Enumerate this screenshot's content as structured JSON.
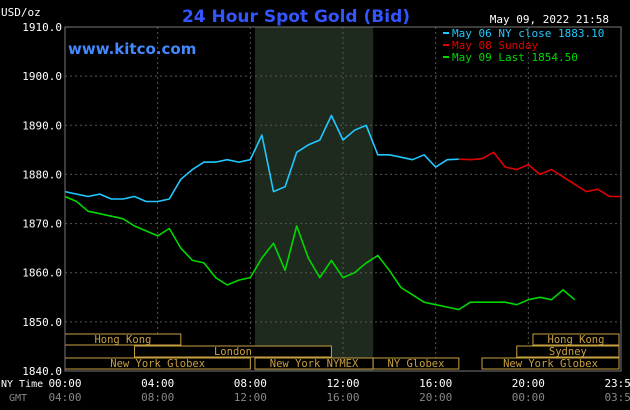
{
  "chart_data": {
    "type": "line",
    "title": "24 Hour Spot Gold (Bid)",
    "ylabel": "USD/oz",
    "timestamp": "May 09, 2022 21:58",
    "watermark": "www.kitco.com",
    "ylim": [
      1840,
      1910
    ],
    "y_ticks": [
      "1840.0",
      "1850.0",
      "1860.0",
      "1870.0",
      "1880.0",
      "1890.0",
      "1900.0",
      "1910.0"
    ],
    "x_row_label_ny": "NY Time",
    "x_row_label_gmt": "GMT",
    "x_ticks_ny": [
      "00:00",
      "04:00",
      "08:00",
      "12:00",
      "16:00",
      "20:00",
      "23:59"
    ],
    "x_ticks_gmt": [
      "04:00",
      "08:00",
      "12:00",
      "16:00",
      "20:00",
      "00:00",
      "03:59"
    ],
    "grid": true,
    "legend_position": "top-right",
    "colors": {
      "background": "#000000",
      "plot": "#000000",
      "nymex_band": "#1e2a1e",
      "grid": "#555555",
      "title": "#3355ff",
      "axis_text": "#ffffff",
      "session_fill": "#000000",
      "session_border": "#c8a040",
      "session_text": "#c8a040"
    },
    "series": [
      {
        "name": "May 06 NY close 1883.10",
        "color": "#20c8ff",
        "x": [
          0,
          0.5,
          1,
          1.5,
          2,
          2.5,
          3,
          3.5,
          4,
          4.5,
          5,
          5.5,
          6,
          6.5,
          7,
          7.5,
          8,
          8.5,
          9,
          9.5,
          10,
          10.5,
          11,
          11.5,
          12,
          12.5,
          13,
          13.5,
          14,
          14.5,
          15,
          15.5,
          16,
          16.5,
          17
        ],
        "values": [
          1876.5,
          1876,
          1875.5,
          1876,
          1875,
          1875,
          1875.5,
          1874.5,
          1874.5,
          1875,
          1879,
          1881,
          1882.5,
          1882.5,
          1883,
          1882.5,
          1883,
          1888,
          1876.5,
          1877.5,
          1884.5,
          1886,
          1887,
          1892,
          1887,
          1889,
          1890,
          1884,
          1884,
          1883.5,
          1883,
          1884,
          1881.5,
          1883,
          1883.1
        ]
      },
      {
        "name": "May 08 Sunday",
        "color": "#e00000",
        "x": [
          17,
          17.5,
          18,
          18.5,
          19,
          19.5,
          20,
          20.5,
          21,
          21.5,
          22,
          22.5,
          23,
          23.5,
          24
        ],
        "values": [
          1883.1,
          1883,
          1883.2,
          1884.5,
          1881.5,
          1881,
          1882,
          1880,
          1881,
          1879.5,
          1878,
          1876.5,
          1877,
          1875.5,
          1875.5
        ]
      },
      {
        "name": "May 09 Last 1854.50",
        "color": "#00d800",
        "x": [
          0,
          0.5,
          1,
          1.5,
          2,
          2.5,
          3,
          3.5,
          4,
          4.5,
          5,
          5.5,
          6,
          6.5,
          7,
          7.5,
          8,
          8.5,
          9,
          9.5,
          10,
          10.5,
          11,
          11.5,
          12,
          12.5,
          13,
          13.5,
          14,
          14.5,
          15,
          15.5,
          16,
          16.5,
          17,
          17.5,
          18,
          18.5,
          19,
          19.5,
          20,
          20.5,
          21,
          21.5,
          22
        ],
        "values": [
          1875.5,
          1874.5,
          1872.5,
          1872,
          1871.5,
          1871,
          1869.5,
          1868.5,
          1867.5,
          1869,
          1865,
          1862.5,
          1862,
          1859,
          1857.5,
          1858.5,
          1859,
          1863,
          1866,
          1860.5,
          1869.5,
          1863,
          1859,
          1862.5,
          1859,
          1860,
          1862,
          1863.5,
          1860.5,
          1857,
          1855.5,
          1854,
          1853.5,
          1853,
          1852.5,
          1854,
          1854,
          1854,
          1854,
          1853.5,
          1854.5,
          1855,
          1854.5,
          1856.5,
          1854.5
        ]
      }
    ]
  },
  "sessions": [
    {
      "label": "Hong Kong",
      "start": -2,
      "end": 5,
      "row": 0
    },
    {
      "label": "London",
      "start": 3,
      "end": 11.5,
      "row": 1
    },
    {
      "label": "New York Globex",
      "start": -2,
      "end": 8,
      "row": 2
    },
    {
      "label": "New York NYMEX",
      "start": 8.2,
      "end": 13.3,
      "row": 2
    },
    {
      "label": "NY Globex",
      "start": 13.3,
      "end": 17,
      "row": 2
    },
    {
      "label": "Hong Kong",
      "start": 20.2,
      "end": 24.3,
      "row": 0
    },
    {
      "label": "Sydney",
      "start": 19.5,
      "end": 24.3,
      "row": 1
    },
    {
      "label": "New York Globex",
      "start": 18,
      "end": 24.3,
      "row": 2
    }
  ],
  "nymex_band": {
    "start": 8.2,
    "end": 13.3
  }
}
